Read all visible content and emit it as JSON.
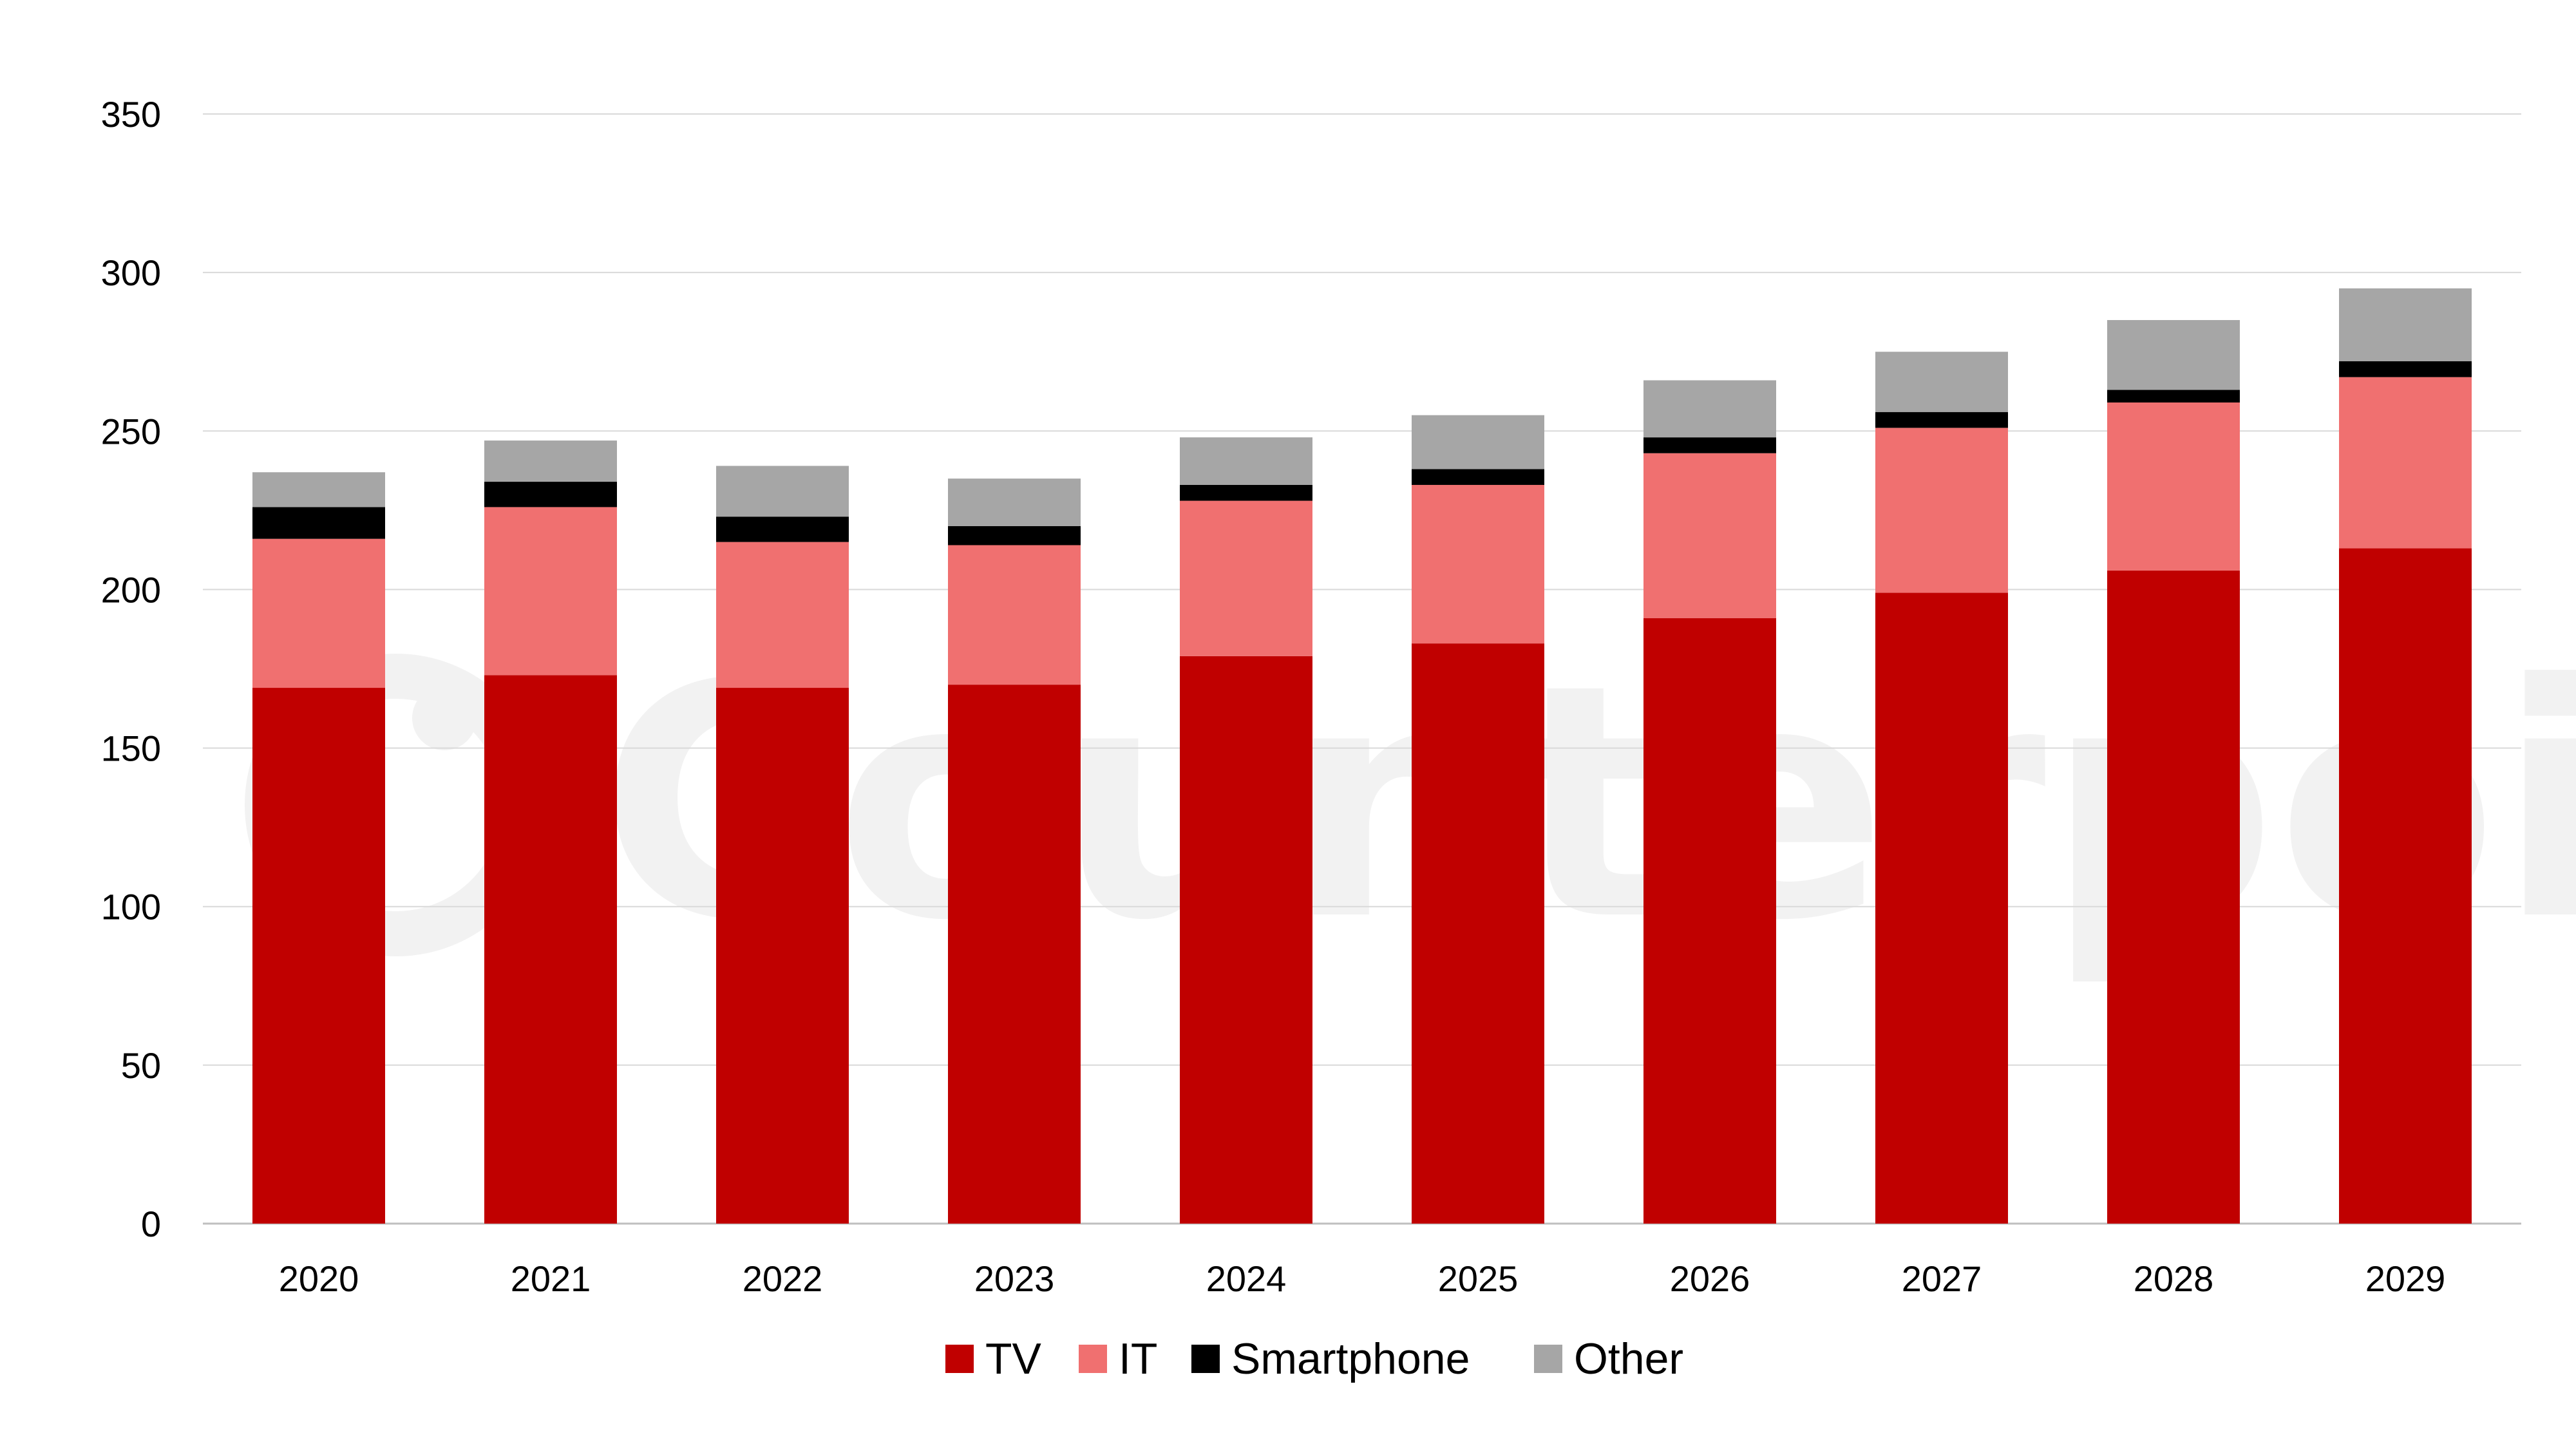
{
  "watermark": {
    "text": "Counterpoint"
  },
  "chart_data": {
    "type": "bar",
    "stacked": true,
    "title": "",
    "xlabel": "",
    "ylabel": "",
    "ylim": [
      0,
      350
    ],
    "yticks": [
      0,
      50,
      100,
      150,
      200,
      250,
      300,
      350
    ],
    "grid": true,
    "legend_position": "bottom",
    "categories": [
      "2020",
      "2021",
      "2022",
      "2023",
      "2024",
      "2025",
      "2026",
      "2027",
      "2028",
      "2029"
    ],
    "series": [
      {
        "name": "TV",
        "color": "#c00000",
        "values": [
          169,
          173,
          169,
          170,
          179,
          183,
          191,
          199,
          206,
          213
        ]
      },
      {
        "name": "IT",
        "color": "#f07070",
        "values": [
          47,
          53,
          46,
          44,
          49,
          50,
          52,
          52,
          53,
          54
        ]
      },
      {
        "name": "Smartphone",
        "color": "#000000",
        "values": [
          10,
          8,
          8,
          6,
          5,
          5,
          5,
          5,
          4,
          5
        ]
      },
      {
        "name": "Other",
        "color": "#a6a6a6",
        "values": [
          11,
          13,
          16,
          15,
          15,
          17,
          18,
          19,
          22,
          23
        ]
      }
    ]
  }
}
